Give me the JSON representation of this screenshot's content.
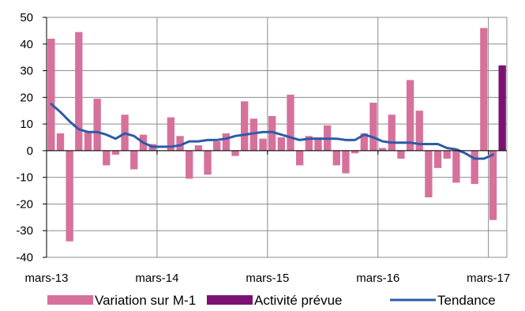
{
  "chart_data": {
    "type": "bar",
    "title": "",
    "xlabel": "",
    "ylabel": "",
    "ylim": [
      -40,
      50
    ],
    "yticks": [
      -40,
      -30,
      -20,
      -10,
      0,
      10,
      20,
      30,
      40,
      50
    ],
    "grid": true,
    "legend_position": "bottom",
    "x_tick_labels": [
      {
        "label": "mars-13",
        "index": 0
      },
      {
        "label": "mars-14",
        "index": 12
      },
      {
        "label": "mars-15",
        "index": 24
      },
      {
        "label": "mars-16",
        "index": 36
      },
      {
        "label": "mars-17",
        "index": 48
      }
    ],
    "categories": [
      "2013-03",
      "2013-04",
      "2013-05",
      "2013-06",
      "2013-07",
      "2013-08",
      "2013-09",
      "2013-10",
      "2013-11",
      "2013-12",
      "2014-01",
      "2014-02",
      "2014-03",
      "2014-04",
      "2014-05",
      "2014-06",
      "2014-07",
      "2014-08",
      "2014-09",
      "2014-10",
      "2014-11",
      "2014-12",
      "2015-01",
      "2015-02",
      "2015-03",
      "2015-04",
      "2015-05",
      "2015-06",
      "2015-07",
      "2015-08",
      "2015-09",
      "2015-10",
      "2015-11",
      "2015-12",
      "2016-01",
      "2016-02",
      "2016-03",
      "2016-04",
      "2016-05",
      "2016-06",
      "2016-07",
      "2016-08",
      "2016-09",
      "2016-10",
      "2016-11",
      "2016-12",
      "2017-01",
      "2017-02",
      "2017-03",
      "2017-04"
    ],
    "series": [
      {
        "name": "Variation sur M-1",
        "type": "bar",
        "color": "#d6719c",
        "values": [
          42,
          6.5,
          -34,
          44.5,
          7,
          19.5,
          -5.5,
          -1.5,
          13.5,
          -7,
          6,
          2.5,
          0,
          12.5,
          5.5,
          -10.5,
          2,
          -9,
          3.5,
          6.5,
          -2,
          18.5,
          12,
          4.5,
          13,
          5,
          21,
          -5.5,
          5.5,
          5,
          9.5,
          -5.5,
          -8.5,
          -1,
          6.5,
          18,
          1,
          13.5,
          -3,
          26.5,
          15,
          -17.5,
          -6.5,
          -3,
          -12,
          0,
          -12.5,
          46,
          -26,
          null
        ]
      },
      {
        "name": "Activité prévue",
        "type": "bar",
        "color": "#7b1272",
        "values": [
          null,
          null,
          null,
          null,
          null,
          null,
          null,
          null,
          null,
          null,
          null,
          null,
          null,
          null,
          null,
          null,
          null,
          null,
          null,
          null,
          null,
          null,
          null,
          null,
          null,
          null,
          null,
          null,
          null,
          null,
          null,
          null,
          null,
          null,
          null,
          null,
          null,
          null,
          null,
          null,
          null,
          null,
          null,
          null,
          null,
          null,
          null,
          null,
          null,
          32
        ]
      },
      {
        "name": "Tendance",
        "type": "line",
        "color": "#2e5ba6",
        "values": [
          17.5,
          14.5,
          11,
          8,
          7,
          7,
          6,
          4.5,
          6.5,
          5.5,
          3,
          1.5,
          1.5,
          1.5,
          2,
          3.5,
          3.5,
          4,
          4,
          4.5,
          5.5,
          6,
          6.5,
          7,
          7,
          6,
          5,
          4,
          4.5,
          4.5,
          4.5,
          4.5,
          4,
          4,
          6,
          5,
          3.5,
          3,
          3,
          3,
          2.5,
          2.5,
          2.5,
          1,
          0.5,
          -1,
          -3,
          -3,
          -1.5,
          null
        ]
      }
    ]
  }
}
